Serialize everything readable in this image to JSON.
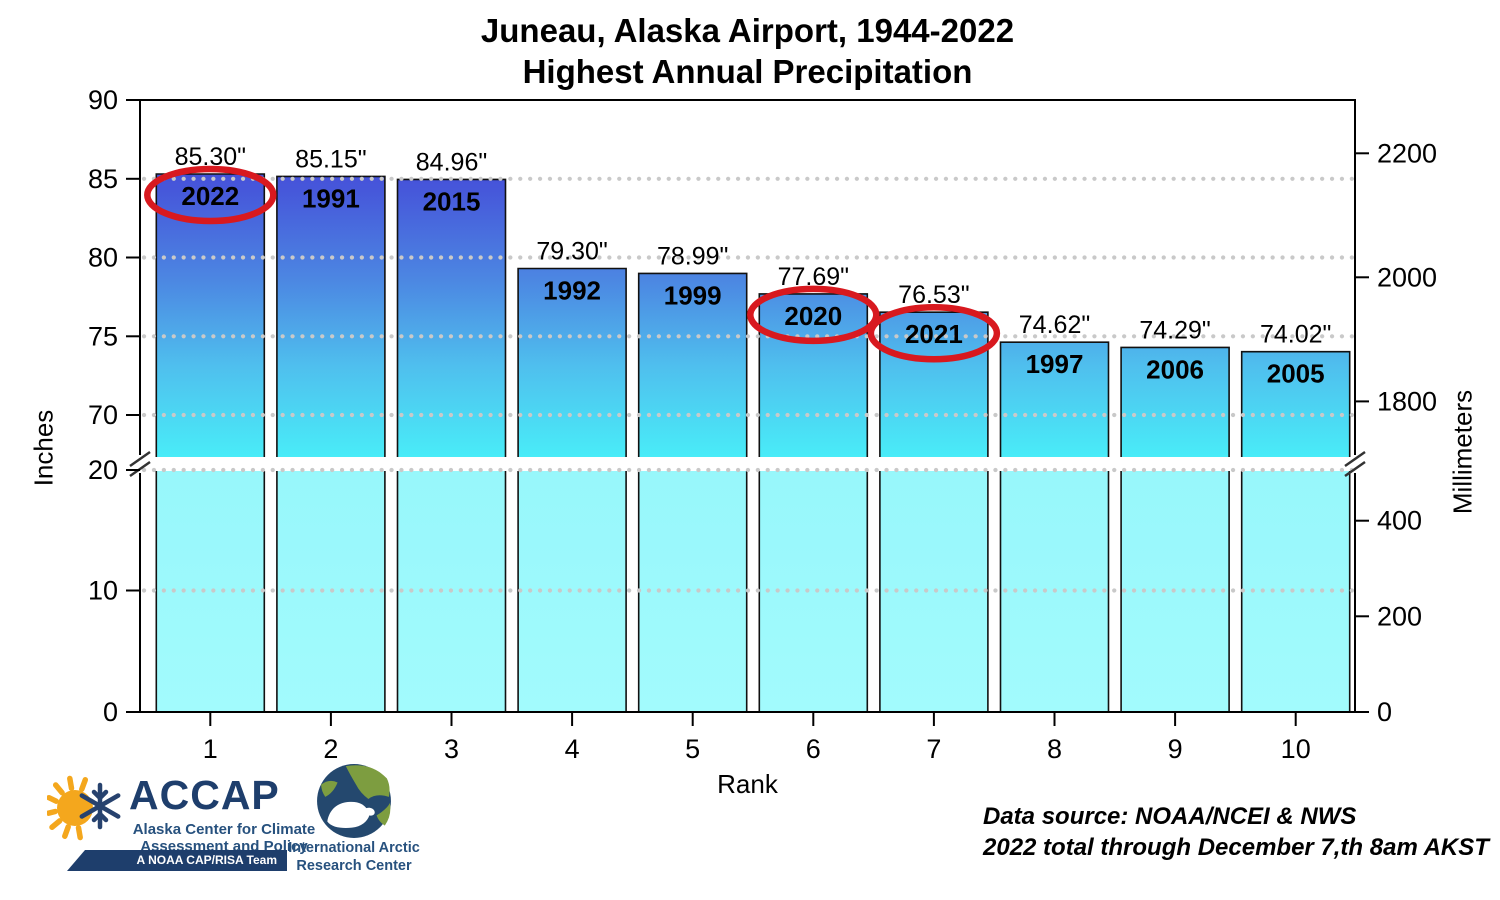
{
  "title": {
    "line1": "Juneau, Alaska Airport, 1944-2022",
    "line2": "Highest Annual Precipitation"
  },
  "chart_data": {
    "type": "bar",
    "title": "Juneau, Alaska Airport, 1944-2022 — Highest Annual Precipitation",
    "xlabel": "Rank",
    "ylabel_left": "Inches",
    "ylabel_right": "Millimeters",
    "grid": "dotted horizontal at inch ticks",
    "axis_break": {
      "lower_inches_range": [
        0,
        20
      ],
      "upper_inches_range": [
        67,
        90
      ],
      "note": "y-axis broken between 20 and ~67 inches on both bars and axes"
    },
    "axes": {
      "left": {
        "label": "Inches",
        "upper_ticks": [
          90,
          85,
          80,
          75,
          70
        ],
        "lower_ticks": [
          20,
          10,
          0
        ]
      },
      "right": {
        "label": "Millimeters",
        "upper_ticks": [
          2200,
          2000,
          1800
        ],
        "lower_ticks": [
          400,
          200,
          0
        ]
      },
      "x": {
        "label": "Rank",
        "ticks": [
          1,
          2,
          3,
          4,
          5,
          6,
          7,
          8,
          9,
          10
        ]
      }
    },
    "categories": [
      1,
      2,
      3,
      4,
      5,
      6,
      7,
      8,
      9,
      10
    ],
    "series": [
      {
        "name": "Highest annual precipitation (inches)",
        "values": [
          85.3,
          85.15,
          84.96,
          79.3,
          78.99,
          77.69,
          76.53,
          74.62,
          74.29,
          74.02
        ]
      }
    ],
    "bars": [
      {
        "rank": 1,
        "year": "2022",
        "inches": 85.3,
        "label": "85.30\"",
        "circled": true
      },
      {
        "rank": 2,
        "year": "1991",
        "inches": 85.15,
        "label": "85.15\"",
        "circled": false
      },
      {
        "rank": 3,
        "year": "2015",
        "inches": 84.96,
        "label": "84.96\"",
        "circled": false
      },
      {
        "rank": 4,
        "year": "1992",
        "inches": 79.3,
        "label": "79.30\"",
        "circled": false
      },
      {
        "rank": 5,
        "year": "1999",
        "inches": 78.99,
        "label": "78.99\"",
        "circled": false
      },
      {
        "rank": 6,
        "year": "2020",
        "inches": 77.69,
        "label": "77.69\"",
        "circled": true
      },
      {
        "rank": 7,
        "year": "2021",
        "inches": 76.53,
        "label": "76.53\"",
        "circled": true
      },
      {
        "rank": 8,
        "year": "1997",
        "inches": 74.62,
        "label": "74.62\"",
        "circled": false
      },
      {
        "rank": 9,
        "year": "2006",
        "inches": 74.29,
        "label": "74.29\"",
        "circled": false
      },
      {
        "rank": 10,
        "year": "2005",
        "inches": 74.02,
        "label": "74.02\"",
        "circled": false
      }
    ]
  },
  "footer": {
    "accap": {
      "name": "ACCAP",
      "sub1": "Alaska Center for Climate",
      "sub2": "Assessment and Policy",
      "banner": "A NOAA CAP/RISA Team"
    },
    "iarc": {
      "line1": "International Arctic",
      "line2": "Research Center"
    },
    "datasource": {
      "line1": "Data source: NOAA/NCEI & NWS",
      "line2": "2022 total through December 7,th 8am AKST"
    }
  },
  "colors": {
    "bar_top": "#4038d2",
    "bar_mid1": "#4657da",
    "bar_mid2": "#4c86e2",
    "bar_mid3": "#4fc0ee",
    "bar_break": "#49ecf8",
    "bar_lower": "#a2fbfd",
    "grid": "#c9c9c9",
    "highlight_red": "#d8191f",
    "navy": "#1e3e6c",
    "navy_text": "#27517e",
    "sun_orange": "#f4a71d",
    "land_green": "#7d9d40",
    "globe_ocean": "#24486e"
  }
}
